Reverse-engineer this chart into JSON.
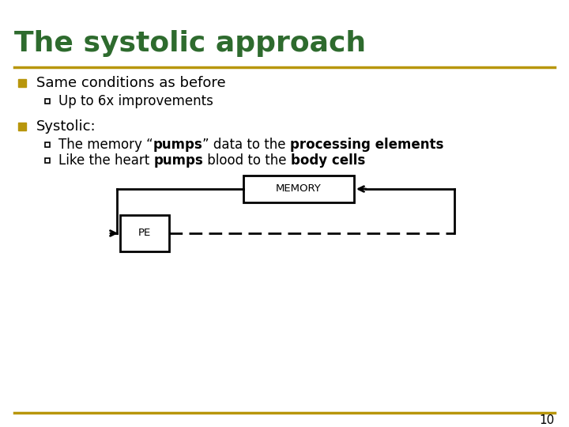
{
  "title": "The systolic approach",
  "title_color": "#2E6B2E",
  "title_fontsize": 26,
  "separator_color": "#B8960C",
  "bg_color": "#FFFFFF",
  "bullet_color": "#B8960C",
  "text_color": "#000000",
  "bullet1": "Same conditions as before",
  "sub_bullet1": "Up to 6x improvements",
  "bullet2": "Systolic:",
  "page_number": "10",
  "footer_color": "#B8960C"
}
